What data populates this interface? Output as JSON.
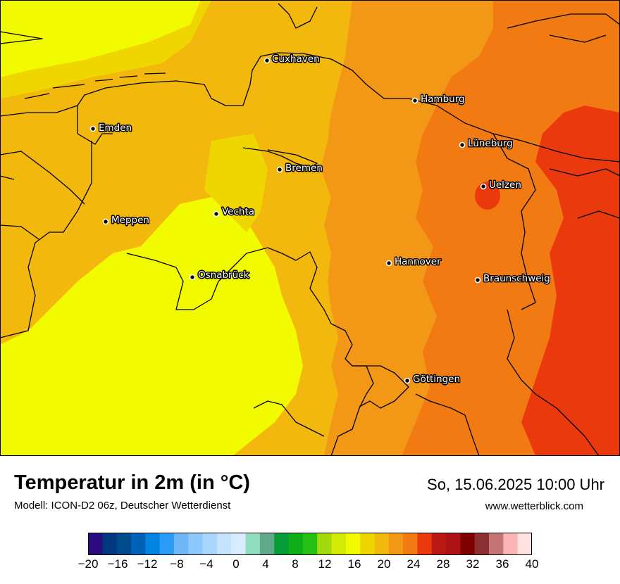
{
  "map": {
    "cities": [
      {
        "name": "Cuxhaven"
      },
      {
        "name": "Hamburg"
      },
      {
        "name": "Emden"
      },
      {
        "name": "Lüneburg"
      },
      {
        "name": "Bremen"
      },
      {
        "name": "Uelzen"
      },
      {
        "name": "Vechta"
      },
      {
        "name": "Meppen"
      },
      {
        "name": "Hannover"
      },
      {
        "name": "Osnabrück"
      },
      {
        "name": "Braunschweig"
      },
      {
        "name": "Göttingen"
      }
    ]
  },
  "footer": {
    "title": "Temperatur in 2m (in °C)",
    "subtitle": "Modell: ICON-D2 06z, Deutscher Wetterdienst",
    "datetime": "So, 15.06.2025 10:00 Uhr",
    "website": "www.wetterblick.com"
  },
  "legend": {
    "colors": [
      "#2a0a7e",
      "#003880",
      "#004a8c",
      "#0062b5",
      "#0084e0",
      "#2b9cf5",
      "#6fb8f8",
      "#8cc8fb",
      "#a9d6fc",
      "#c5e3fd",
      "#d9ecfd",
      "#8fdcbe",
      "#62a98b",
      "#089c38",
      "#0eae18",
      "#26c114",
      "#a1d90d",
      "#d3ea04",
      "#f2fa00",
      "#f0d600",
      "#f3b80d",
      "#f39716",
      "#f17b12",
      "#ea3a0d",
      "#ba1813",
      "#ad1214",
      "#800000",
      "#8b3030",
      "#c67577",
      "#fcb5b5",
      "#ffe1e1"
    ],
    "ticks": [
      "−20",
      "−16",
      "−12",
      "−8",
      "−4",
      "0",
      "4",
      "8",
      "12",
      "16",
      "20",
      "24",
      "28",
      "32",
      "36",
      "40"
    ]
  }
}
